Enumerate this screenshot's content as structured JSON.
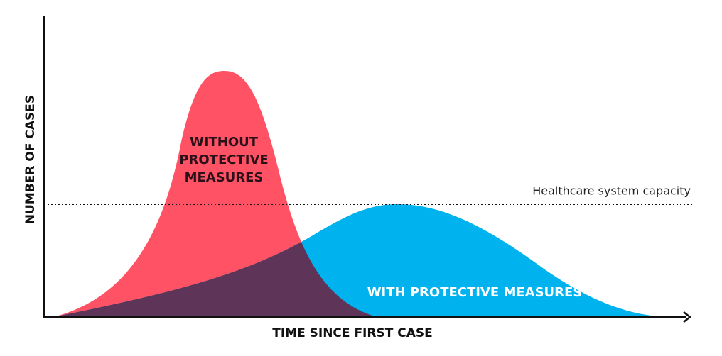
{
  "y_axis_label": "NUMBER OF CASES",
  "x_axis_label": "TIME SINCE FIRST CASE",
  "capacity_label": "Healthcare system capacity",
  "curves": [
    {
      "label_lines": [
        "WITHOUT",
        "PROTECTIVE",
        "MEASURES"
      ]
    },
    {
      "label_lines": [
        "WITH PROTECTIVE MEASURES"
      ]
    }
  ]
}
